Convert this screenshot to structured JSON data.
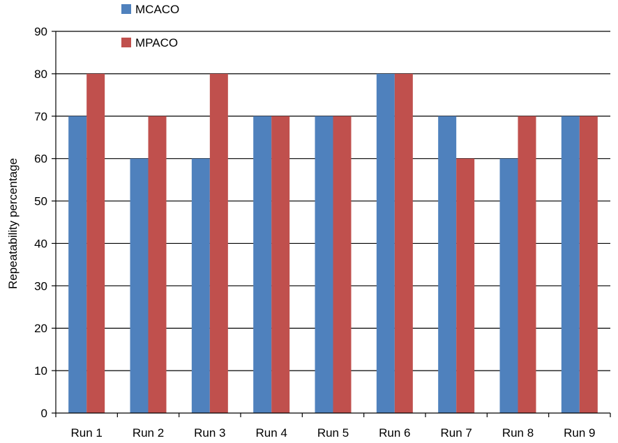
{
  "chart_data": {
    "type": "bar",
    "title": "",
    "xlabel": "",
    "ylabel": "Repeatability percentage",
    "ylim": [
      0,
      90
    ],
    "ytick_step": 10,
    "grid": true,
    "legend_position": "top-left",
    "categories": [
      "Run 1",
      "Run 2",
      "Run 3",
      "Run 4",
      "Run 5",
      "Run 6",
      "Run 7",
      "Run 8",
      "Run 9"
    ],
    "series": [
      {
        "name": "MCACO",
        "color": "#4F81BD",
        "values": [
          70,
          60,
          60,
          70,
          70,
          80,
          70,
          60,
          70
        ]
      },
      {
        "name": "MPACO",
        "color": "#C0504D",
        "values": [
          80,
          70,
          80,
          70,
          70,
          80,
          60,
          70,
          70
        ]
      }
    ]
  }
}
